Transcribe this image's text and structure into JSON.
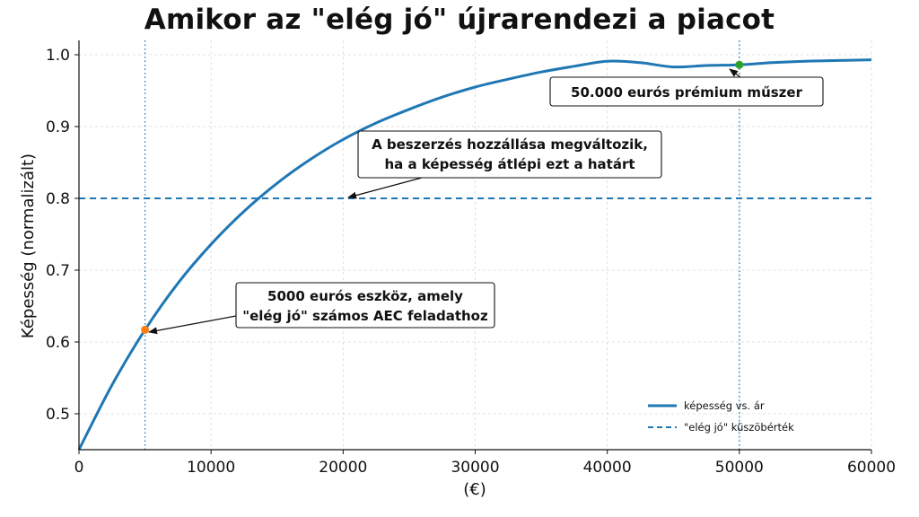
{
  "chart_data": {
    "type": "line",
    "title": "Amikor az \"elég jó\" újrarendezi a piacot",
    "xlabel": "(€)",
    "ylabel": "Képesség (normalizált)",
    "xlim": [
      0,
      60000
    ],
    "ylim": [
      0.45,
      1.02
    ],
    "x_ticks": [
      0,
      10000,
      20000,
      30000,
      40000,
      50000,
      60000
    ],
    "y_ticks": [
      0.5,
      0.6,
      0.7,
      0.8,
      0.9,
      1.0
    ],
    "y_tick_labels": [
      "0.5",
      "0.6",
      "0.7",
      "0.8",
      "0.9",
      "1.0"
    ],
    "grid": true,
    "legend_position": "lower-right",
    "series": [
      {
        "name": "képesség vs. ár",
        "color": "#1f77b4",
        "style": "solid",
        "x": [
          0,
          2500,
          5000,
          7500,
          10000,
          12500,
          15000,
          17500,
          20000,
          22500,
          25000,
          27500,
          30000,
          32500,
          35000,
          37500,
          40000,
          42500,
          45000,
          47500,
          50000,
          52500,
          55000,
          57500,
          60000
        ],
        "y": [
          0.45,
          0.54,
          0.617,
          0.682,
          0.736,
          0.782,
          0.821,
          0.854,
          0.882,
          0.905,
          0.924,
          0.941,
          0.955,
          0.966,
          0.976,
          0.984,
          0.991,
          0.989,
          0.983,
          0.985,
          0.986,
          0.989,
          0.991,
          0.992,
          0.993
        ]
      }
    ],
    "threshold": {
      "name": "\"elég jó\" küszöbérték",
      "y": 0.8,
      "color": "#1f77b4",
      "style": "dashed"
    },
    "vertical_markers": [
      {
        "x": 5000,
        "color": "#1f77b4",
        "style": "dotted"
      },
      {
        "x": 50000,
        "color": "#1f77b4",
        "style": "dotted"
      }
    ],
    "points": [
      {
        "x": 5000,
        "y": 0.617,
        "color": "#ff7f0e"
      },
      {
        "x": 50000,
        "y": 0.986,
        "color": "#2ca02c"
      }
    ],
    "annotations": [
      {
        "lines": [
          "50.000 eurós prémium műszer"
        ],
        "target_x": 50000,
        "target_y": 0.986
      },
      {
        "lines": [
          "A beszerzés hozzállása megváltozik,",
          "ha a képesség átlépi ezt a határt"
        ],
        "target_x": 20000,
        "target_y": 0.8
      },
      {
        "lines": [
          "5000 eurós eszköz, amely",
          "\"elég jó\" számos AEC feladathoz"
        ],
        "target_x": 5000,
        "target_y": 0.617
      }
    ]
  }
}
